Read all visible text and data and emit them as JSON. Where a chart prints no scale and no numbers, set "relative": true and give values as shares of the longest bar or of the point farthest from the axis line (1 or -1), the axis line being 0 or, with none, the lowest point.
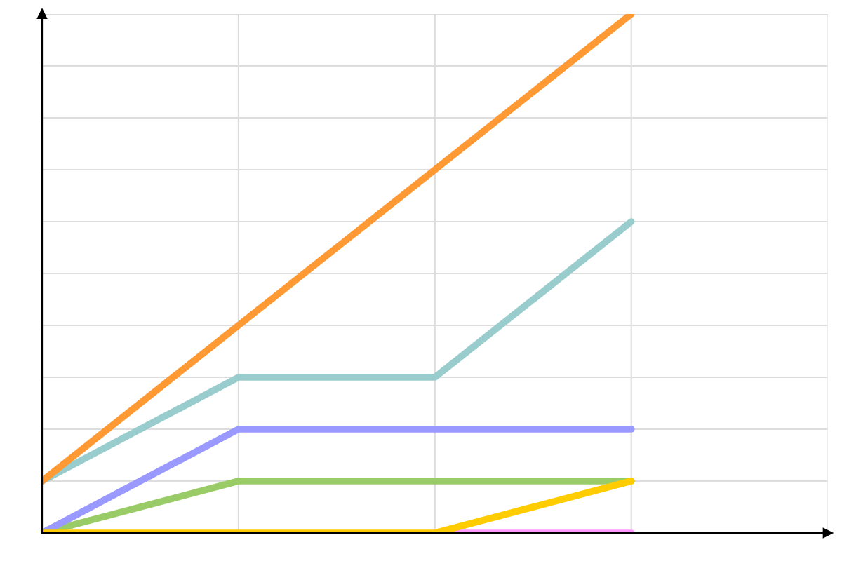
{
  "chart_data": {
    "type": "line",
    "relative": true,
    "categories": [
      null,
      null,
      null,
      null,
      null
    ],
    "grid": true,
    "marker": "none",
    "line_style": "solid",
    "series": [
      {
        "color": "#ff99ff",
        "values": [
          null,
          null,
          0,
          0,
          null
        ]
      },
      {
        "color": "#99cc66",
        "values": [
          0,
          0.1,
          0.1,
          0.1,
          null
        ]
      },
      {
        "color": "#9999ff",
        "values": [
          0,
          0.2,
          0.2,
          0.2,
          null
        ]
      },
      {
        "color": "#99cccc",
        "values": [
          0.1,
          0.3,
          0.3,
          0.6,
          null
        ]
      },
      {
        "color": "#ff9933",
        "values": [
          0.1,
          0.4,
          0.7,
          1.0,
          null
        ]
      },
      {
        "color": "#ffcc00",
        "values": [
          0,
          0,
          0,
          0.1,
          null
        ]
      }
    ]
  }
}
